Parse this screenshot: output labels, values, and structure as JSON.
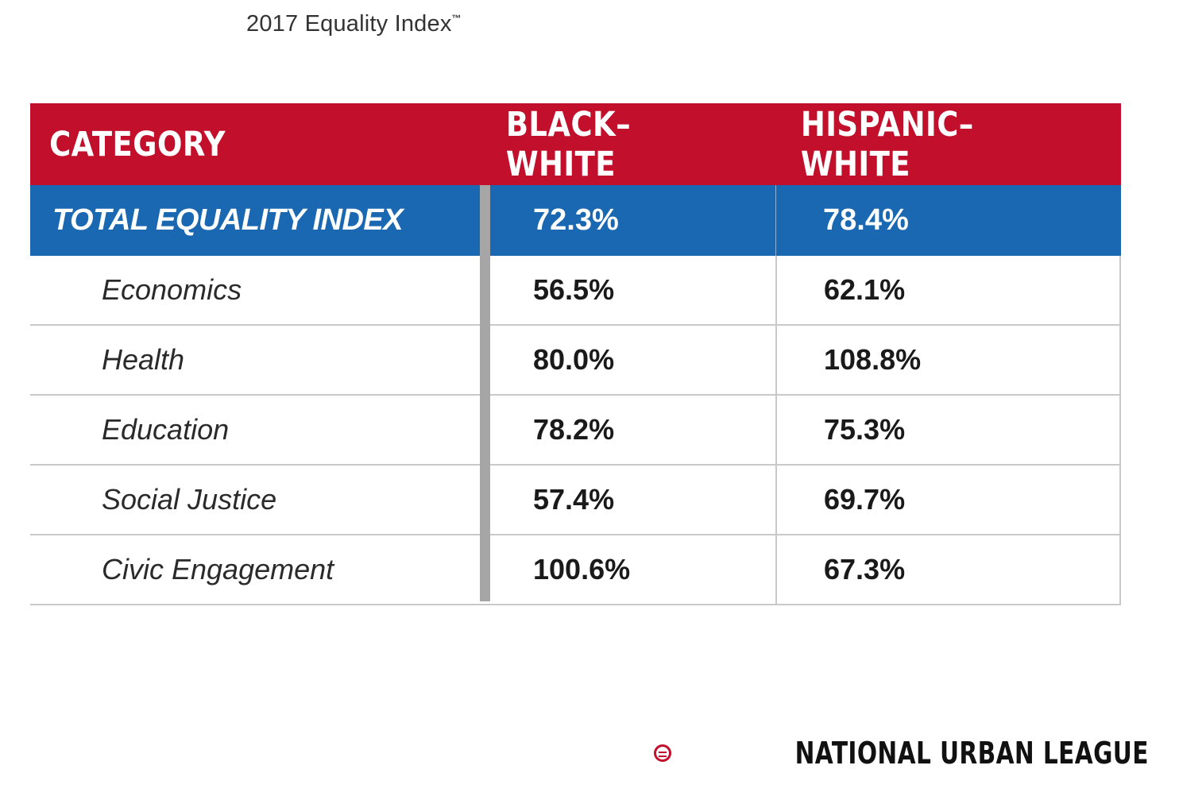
{
  "page_title": "2017 Equality Index",
  "page_title_mark": "™",
  "table": {
    "headers": [
      "CATEGORY",
      "BLACK–WHITE",
      "HISPANIC–WHITE"
    ],
    "total": {
      "label": "TOTAL EQUALITY INDEX",
      "black_white": "72.3%",
      "hispanic_white": "78.4%"
    },
    "rows": [
      {
        "label": "Economics",
        "black_white": "56.5%",
        "hispanic_white": "62.1%"
      },
      {
        "label": "Health",
        "black_white": "80.0%",
        "hispanic_white": "108.8%"
      },
      {
        "label": "Education",
        "black_white": "78.2%",
        "hispanic_white": "75.3%"
      },
      {
        "label": "Social Justice",
        "black_white": "57.4%",
        "hispanic_white": "69.7%"
      },
      {
        "label": "Civic Engagement",
        "black_white": "100.6%",
        "hispanic_white": "67.3%"
      }
    ]
  },
  "chart_data": {
    "type": "table",
    "title": "2017 Equality Index™",
    "columns": [
      "CATEGORY",
      "BLACK–WHITE",
      "HISPANIC–WHITE"
    ],
    "rows": [
      [
        "TOTAL EQUALITY INDEX",
        72.3,
        78.4
      ],
      [
        "Economics",
        56.5,
        62.1
      ],
      [
        "Health",
        80.0,
        108.8
      ],
      [
        "Education",
        78.2,
        75.3
      ],
      [
        "Social Justice",
        57.4,
        69.7
      ],
      [
        "Civic Engagement",
        100.6,
        67.3
      ]
    ],
    "unit": "%"
  },
  "logo": {
    "text": "NATIONAL URBAN LEAGUE",
    "icon": "national-urban-league-logo-icon"
  },
  "colors": {
    "header_red": "#c2102c",
    "total_blue": "#1a68b2",
    "divider_gray": "#a6a6a6"
  }
}
